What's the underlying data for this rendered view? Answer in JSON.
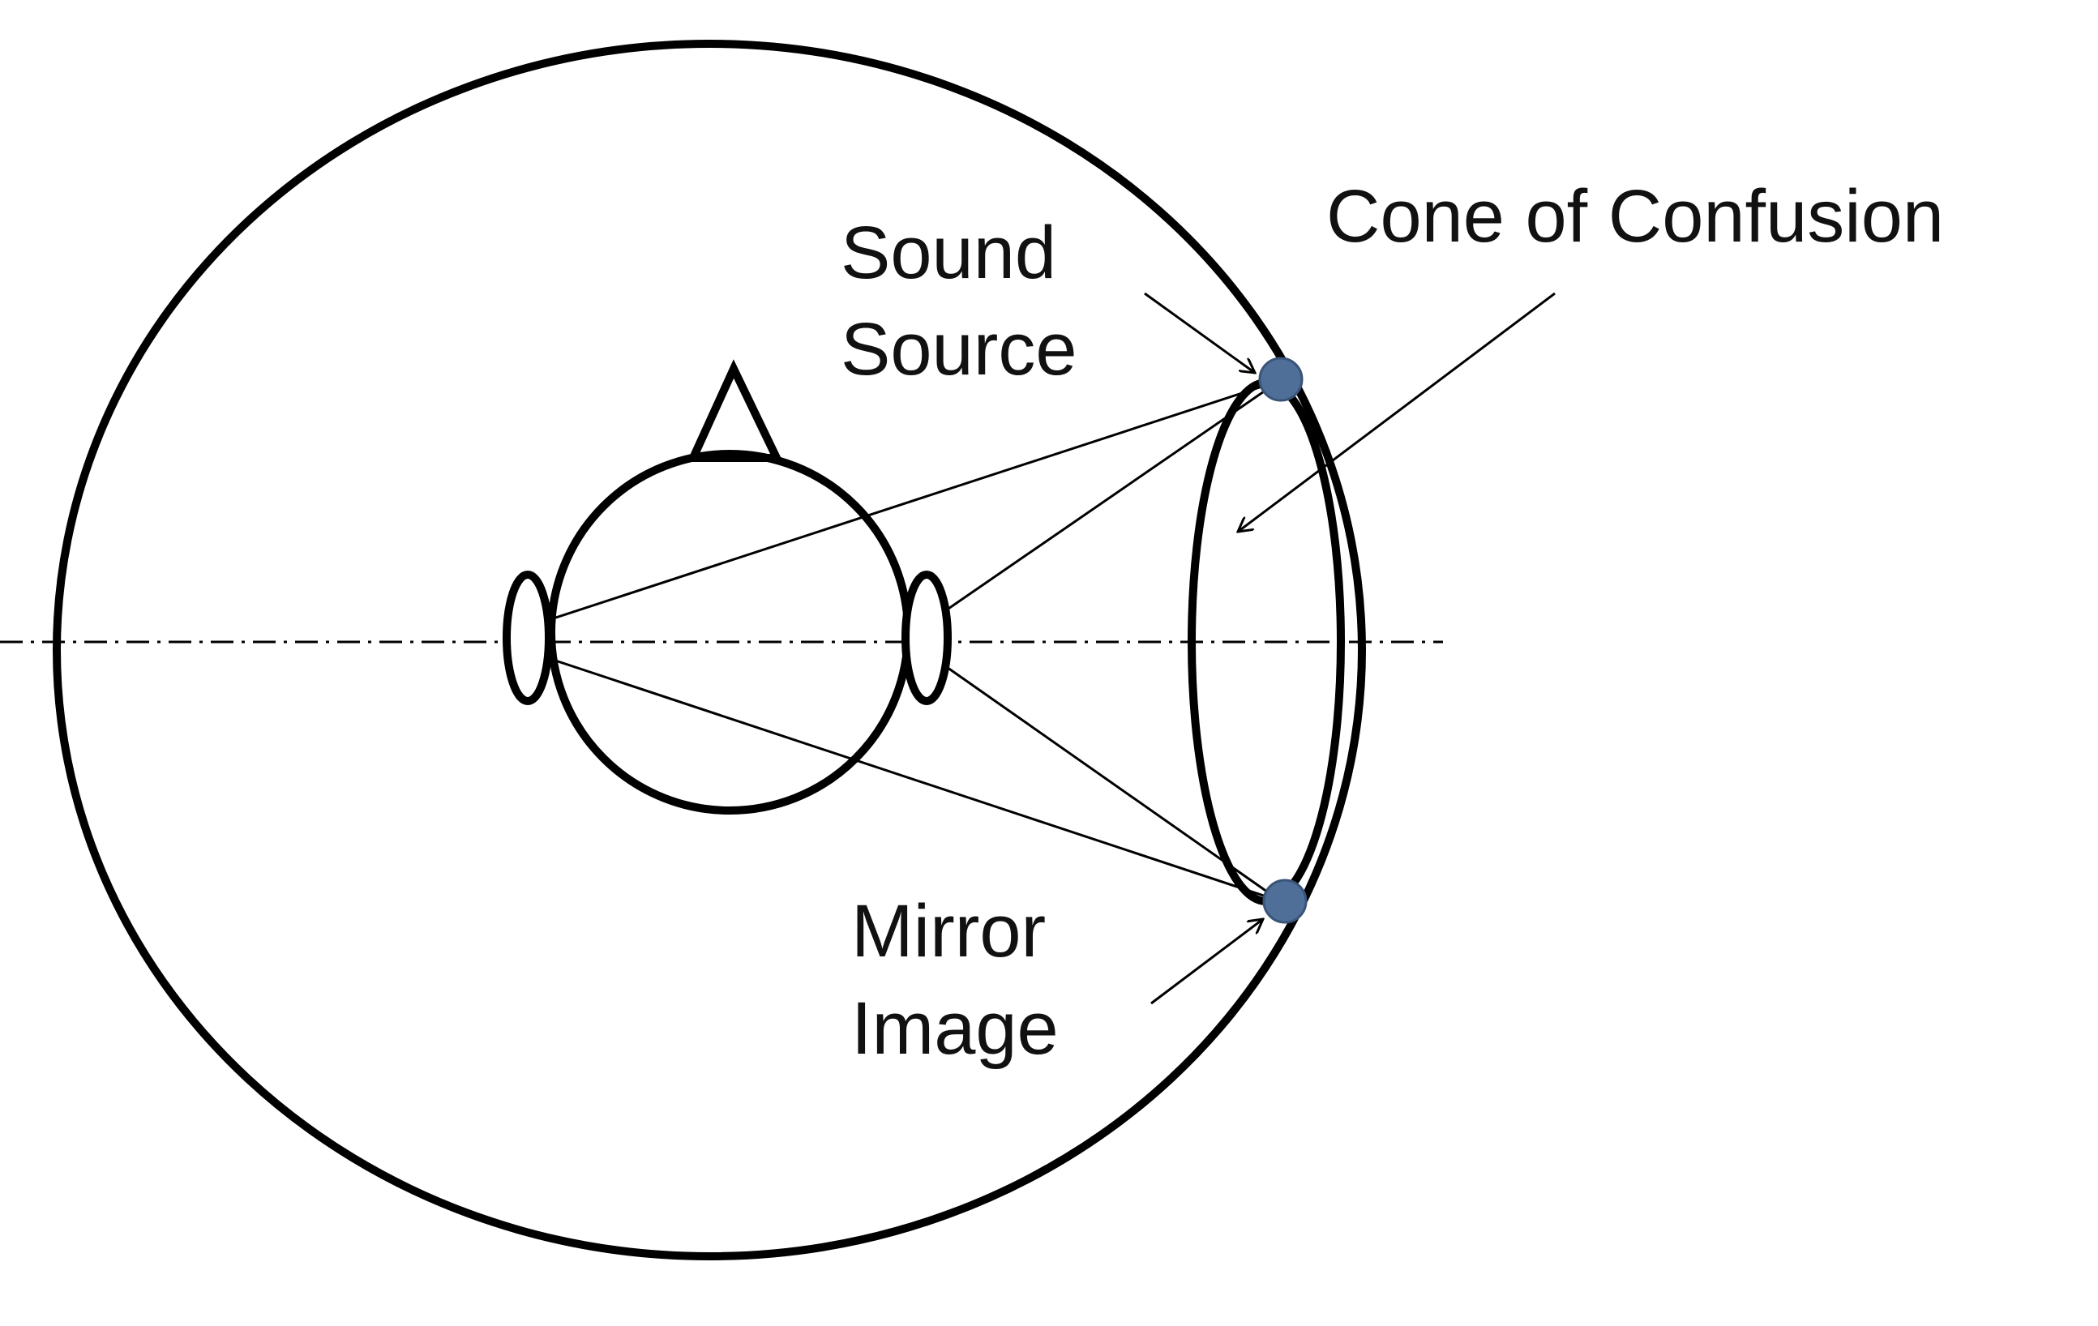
{
  "labels": {
    "sound_source_line1": "Sound",
    "sound_source_line2": "Source",
    "mirror_image_line1": "Mirror",
    "mirror_image_line2": "Image",
    "cone_of_confusion": "Cone of Confusion"
  },
  "colors": {
    "stroke": "#000000",
    "point_fill": "#4f6f99",
    "background": "#ffffff"
  }
}
